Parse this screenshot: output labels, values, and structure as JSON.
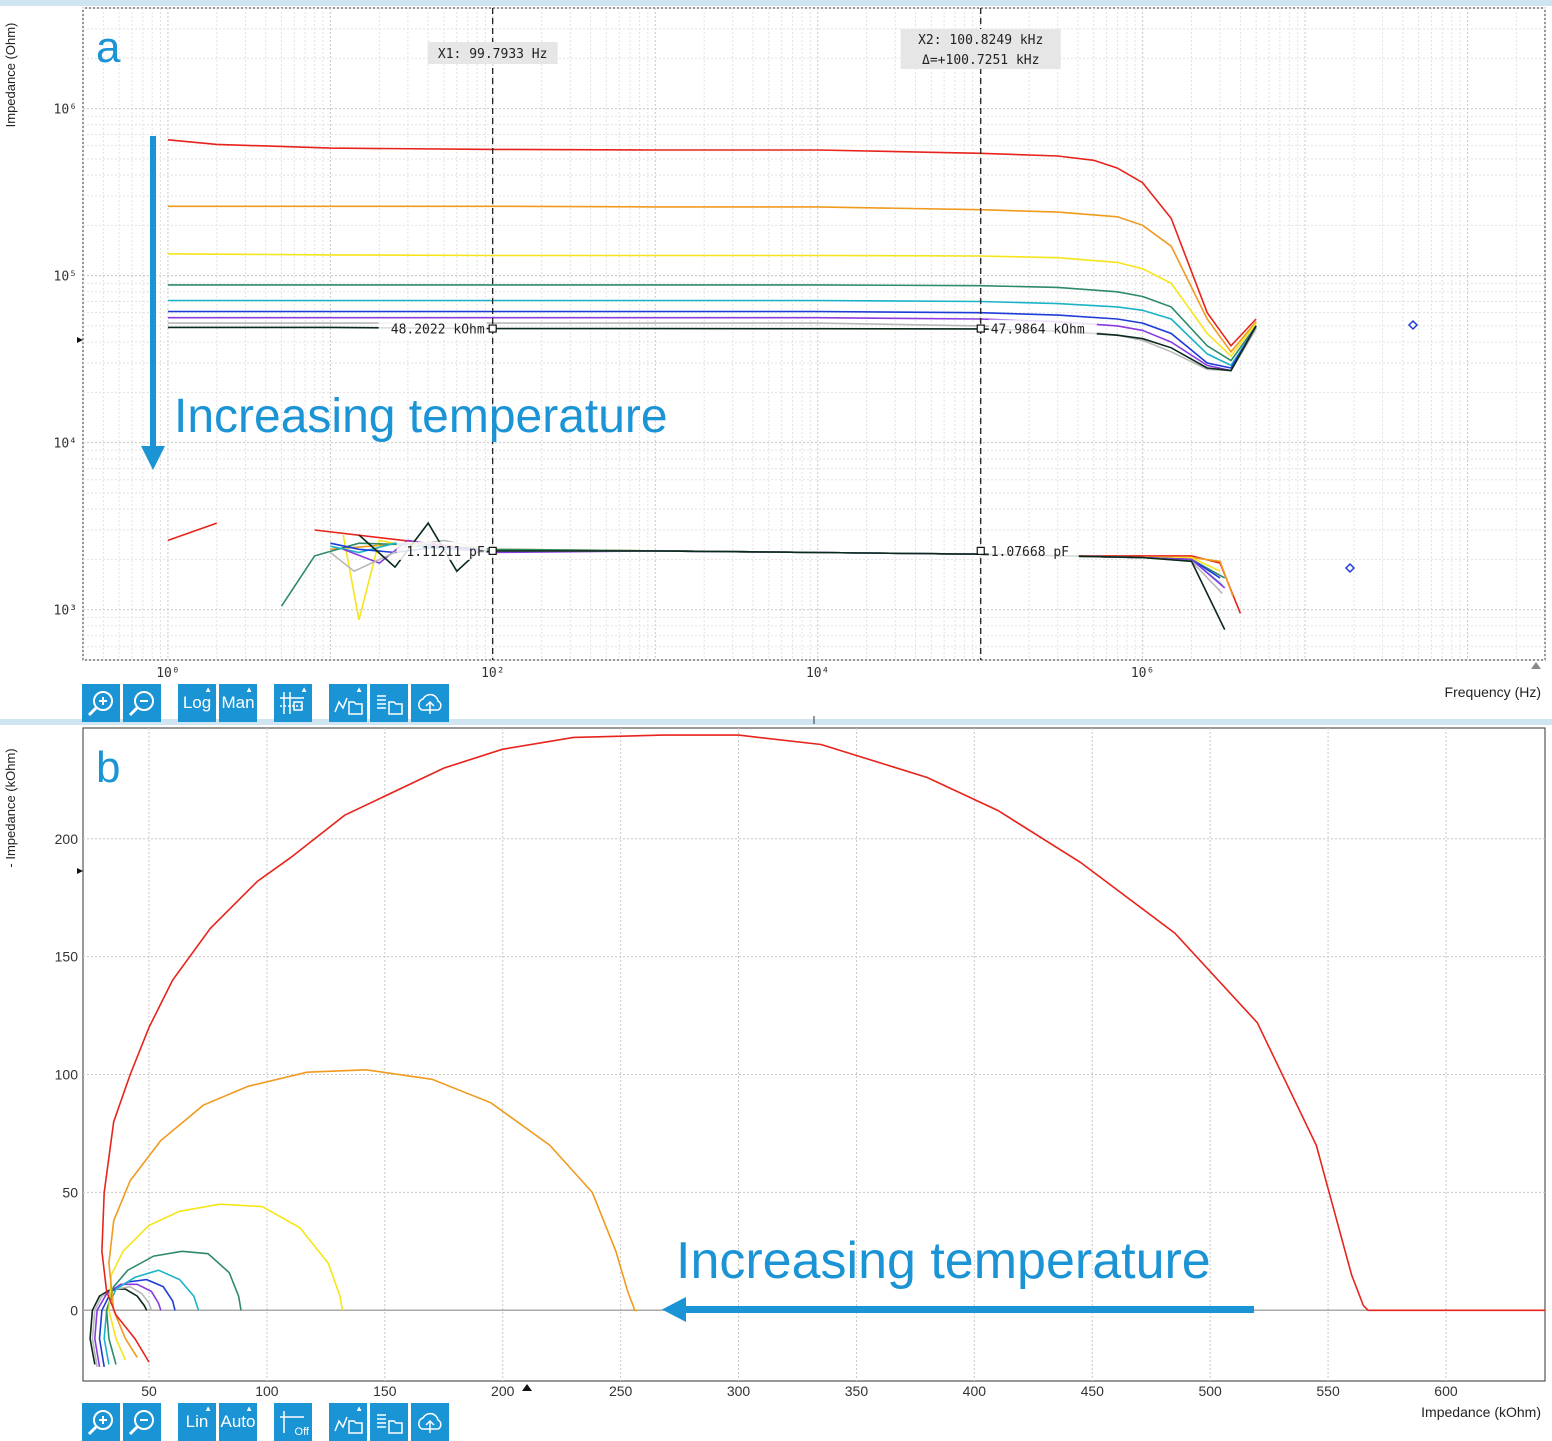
{
  "panel_a": {
    "label": "a",
    "annotation": "Increasing temperature",
    "cursor1_label": "X1: 99.7933 Hz",
    "cursor2_label": [
      "X2: 100.8249 kHz",
      "Δ=+100.7251 kHz"
    ],
    "marker_values": [
      "48.2022 kOhm",
      "47.9864 kOhm",
      "1.11211 pF",
      "1.07668 pF"
    ],
    "toolbar": {
      "zoom_in_icon": "zoom-in-icon",
      "zoom_out_icon": "zoom-out-icon",
      "scale_label": "Log",
      "range_label": "Man",
      "grid_icon": "grid-settings-icon",
      "export_icons": [
        "save-plot-icon",
        "save-data-icon",
        "upload-cloud-icon"
      ]
    }
  },
  "panel_b": {
    "label": "b",
    "annotation": "Increasing temperature",
    "toolbar": {
      "zoom_in_icon": "zoom-in-icon",
      "zoom_out_icon": "zoom-out-icon",
      "scale_label": "Lin",
      "range_label": "Auto",
      "grid_label": "Off",
      "export_icons": [
        "save-plot-icon",
        "save-data-icon",
        "upload-cloud-icon"
      ]
    }
  },
  "colors": {
    "accent": "#1a94d4",
    "series": [
      "#e8231c",
      "#f09a1e",
      "#f5e51a",
      "#2e8b6a",
      "#1ab4c8",
      "#1e3cd8",
      "#8a3ce0",
      "#b8b8b8",
      "#0a2a1a"
    ]
  },
  "chart_data": [
    {
      "type": "line",
      "xlabel": "Frequency (Hz)",
      "ylabel": "Impedance (Ohm)",
      "xscale": "log",
      "yscale": "log",
      "xlim": [
        0.3,
        300000000
      ],
      "ylim": [
        500,
        4000000
      ],
      "xticks": [
        "10⁰",
        "10²",
        "10⁴",
        "10⁶"
      ],
      "yticks": [
        "10³",
        "10⁴",
        "10⁵",
        "10⁶"
      ],
      "grid": true,
      "cursors": [
        99.7933,
        100824.9
      ],
      "impedance_series": [
        {
          "color": "#e8231c",
          "x": [
            1,
            2,
            10,
            100,
            1000,
            10000,
            100000,
            300000,
            500000,
            700000,
            1000000,
            1500000,
            2500000,
            3500000,
            5000000
          ],
          "y": [
            650000,
            610000,
            580000,
            570000,
            565000,
            565000,
            540000,
            520000,
            490000,
            440000,
            360000,
            220000,
            60000,
            38000,
            55000
          ]
        },
        {
          "color": "#f09a1e",
          "x": [
            1,
            10,
            100,
            1000,
            10000,
            100000,
            300000,
            700000,
            1000000,
            1500000,
            2500000,
            3500000,
            5000000
          ],
          "y": [
            260000,
            260000,
            260000,
            258000,
            258000,
            248000,
            240000,
            225000,
            200000,
            150000,
            55000,
            35000,
            53000
          ]
        },
        {
          "color": "#f5e51a",
          "x": [
            1,
            10,
            100,
            1000,
            10000,
            100000,
            300000,
            700000,
            1000000,
            1500000,
            2500000,
            3500000,
            5000000
          ],
          "y": [
            135000,
            133000,
            132000,
            132000,
            132000,
            131000,
            128000,
            120000,
            110000,
            90000,
            45000,
            33000,
            52000
          ]
        },
        {
          "color": "#2e8b6a",
          "x": [
            1,
            10,
            100,
            1000,
            10000,
            100000,
            300000,
            700000,
            1000000,
            1500000,
            2500000,
            3500000,
            5000000
          ],
          "y": [
            88000,
            88000,
            88000,
            88000,
            88000,
            87000,
            85000,
            80000,
            75000,
            65000,
            38000,
            31000,
            50000
          ]
        },
        {
          "color": "#1ab4c8",
          "x": [
            1,
            10,
            100,
            1000,
            10000,
            100000,
            300000,
            700000,
            1000000,
            1500000,
            2500000,
            3500000,
            5000000
          ],
          "y": [
            71000,
            71000,
            71000,
            71000,
            71000,
            70000,
            68000,
            65000,
            62000,
            55000,
            34000,
            29000,
            49000
          ]
        },
        {
          "color": "#1e3cd8",
          "x": [
            1,
            10,
            100,
            1000,
            10000,
            100000,
            300000,
            700000,
            1000000,
            1500000,
            2500000,
            3500000,
            5000000
          ],
          "y": [
            61000,
            61000,
            61000,
            61000,
            61000,
            60000,
            58000,
            55000,
            52000,
            45000,
            30000,
            28000,
            50000
          ]
        },
        {
          "color": "#8a3ce0",
          "x": [
            1,
            10,
            100,
            1000,
            10000,
            100000,
            300000,
            700000,
            1000000,
            1500000,
            2500000,
            3500000,
            5000000
          ],
          "y": [
            56000,
            56000,
            56000,
            56000,
            56000,
            55000,
            53000,
            50000,
            47000,
            40000,
            29000,
            27000,
            50000
          ]
        },
        {
          "color": "#b8b8b8",
          "x": [
            1,
            10,
            100,
            1000,
            10000,
            100000,
            300000,
            700000,
            1000000,
            1500000,
            2500000,
            3500000,
            5000000
          ],
          "y": [
            52000,
            52000,
            52000,
            52000,
            52000,
            50000,
            48000,
            44000,
            41000,
            35000,
            27500,
            27000,
            48000
          ]
        },
        {
          "color": "#0a2a1a",
          "x": [
            1,
            10,
            100,
            1000,
            10000,
            100000,
            300000,
            700000,
            1000000,
            1500000,
            2500000,
            3500000,
            5000000
          ],
          "y": [
            49000,
            49000,
            48200,
            48200,
            48100,
            47986,
            46500,
            44000,
            42000,
            37000,
            28000,
            27000,
            50000
          ]
        }
      ],
      "capacitance_series": [
        {
          "color": "#e8231c",
          "x": [
            1,
            2,
            6,
            8,
            100,
            1000,
            10000,
            100000,
            300000,
            1000000,
            2000000,
            3000000,
            4000000
          ],
          "y": [
            2600,
            3300,
            null,
            3000,
            2250,
            2250,
            2200,
            2150,
            2100,
            2100,
            2100,
            1900,
            950
          ]
        },
        {
          "color": "#f09a1e",
          "x": [
            10,
            30,
            100,
            1000,
            10000,
            100000,
            300000,
            1000000,
            2000000,
            3000000,
            3600000
          ],
          "y": [
            2300,
            2500,
            2300,
            2250,
            2200,
            2150,
            2100,
            2050,
            2050,
            1950,
            1200
          ]
        },
        {
          "color": "#f5e51a",
          "x": [
            12,
            15,
            20,
            30,
            100,
            1000,
            10000,
            100000,
            1000000,
            2000000,
            3000000
          ],
          "y": [
            2800,
            870,
            2600,
            2400,
            2300,
            2250,
            2200,
            2150,
            2050,
            2050,
            1700
          ]
        },
        {
          "color": "#2e8b6a",
          "x": [
            5,
            8,
            15,
            30,
            100,
            1000,
            10000,
            100000,
            1000000,
            2000000,
            3200000
          ],
          "y": [
            1050,
            2100,
            2500,
            2450,
            2300,
            2250,
            2200,
            2150,
            2050,
            2000,
            1550
          ]
        },
        {
          "color": "#1ab4c8",
          "x": [
            10,
            15,
            25,
            50,
            100,
            1000,
            10000,
            100000,
            1000000,
            2000000,
            3100000
          ],
          "y": [
            2400,
            2200,
            2500,
            2300,
            2250,
            2250,
            2200,
            2150,
            2050,
            2000,
            1400
          ]
        },
        {
          "color": "#1e3cd8",
          "x": [
            10,
            15,
            25,
            50,
            100,
            1000,
            10000,
            100000,
            1000000,
            2000000,
            3000000
          ],
          "y": [
            2500,
            2300,
            2200,
            2400,
            2250,
            2250,
            2200,
            2150,
            2050,
            2000,
            1550
          ]
        },
        {
          "color": "#8a3ce0",
          "x": [
            12,
            20,
            30,
            60,
            100,
            1000,
            10000,
            100000,
            1000000,
            2000000,
            3200000
          ],
          "y": [
            2300,
            1900,
            2600,
            2300,
            2200,
            2250,
            2200,
            2150,
            2050,
            2000,
            1350
          ]
        },
        {
          "color": "#b8b8b8",
          "x": [
            10,
            14,
            30,
            50,
            100,
            1000,
            10000,
            100000,
            1000000,
            2000000,
            3100000
          ],
          "y": [
            2200,
            1700,
            2400,
            2600,
            2250,
            2250,
            2200,
            2150,
            2050,
            1950,
            1250
          ]
        },
        {
          "color": "#0a2a1a",
          "x": [
            15,
            25,
            40,
            60,
            80,
            100,
            1000,
            10000,
            100000,
            1000000,
            2000000,
            3200000
          ],
          "y": [
            2800,
            1800,
            3300,
            1700,
            2200,
            2250,
            2250,
            2200,
            2150,
            2050,
            1950,
            760
          ]
        }
      ]
    },
    {
      "type": "line",
      "xlabel": "Impedance (kOhm)",
      "ylabel": "- Impedance (kOhm)",
      "xlim": [
        22,
        642
      ],
      "ylim": [
        -30,
        247
      ],
      "xticks": [
        50,
        100,
        150,
        200,
        250,
        300,
        350,
        400,
        450,
        500,
        550,
        600
      ],
      "yticks": [
        0,
        50,
        100,
        150,
        200
      ],
      "grid": true,
      "zero_line_color": "#aaaaaa",
      "series": [
        {
          "color": "#e8231c",
          "x": [
            50,
            44,
            36,
            32,
            30,
            31,
            35,
            42,
            50,
            60,
            76,
            96,
            110,
            133,
            175,
            200,
            230,
            268,
            300,
            335,
            380,
            410,
            445,
            485,
            520,
            545,
            560,
            565,
            567,
            600,
            642
          ],
          "y": [
            -22,
            -12,
            -2,
            8,
            25,
            50,
            80,
            100,
            120,
            140,
            162,
            182,
            192,
            210,
            230,
            238,
            243,
            244,
            244,
            240,
            226,
            212,
            190,
            160,
            122,
            70,
            15,
            2,
            0,
            0,
            0
          ]
        },
        {
          "color": "#f09a1e",
          "x": [
            45,
            40,
            35,
            33,
            35,
            42,
            55,
            73,
            92,
            117,
            142,
            170,
            195,
            220,
            238,
            248,
            253,
            256,
            257
          ],
          "y": [
            -20,
            -12,
            0,
            20,
            38,
            55,
            72,
            87,
            95,
            101,
            102,
            98,
            88,
            70,
            50,
            25,
            8,
            0,
            0
          ]
        },
        {
          "color": "#f5e51a",
          "x": [
            40,
            36,
            33,
            34,
            39,
            50,
            63,
            80,
            98,
            114,
            126,
            131,
            132
          ],
          "y": [
            -21,
            -12,
            0,
            15,
            25,
            36,
            42,
            45,
            44,
            35,
            20,
            6,
            0
          ]
        },
        {
          "color": "#2e8b6a",
          "x": [
            36,
            33,
            32,
            35,
            41,
            52,
            64,
            75,
            84,
            88,
            89
          ],
          "y": [
            -23,
            -12,
            0,
            10,
            17,
            23,
            25,
            24,
            16,
            6,
            0
          ]
        },
        {
          "color": "#1ab4c8",
          "x": [
            33,
            31,
            32,
            36,
            44,
            54,
            63,
            69,
            71
          ],
          "y": [
            -23,
            -12,
            0,
            9,
            14,
            17,
            13,
            6,
            0
          ]
        },
        {
          "color": "#1e3cd8",
          "x": [
            31,
            29,
            30,
            34,
            41,
            49,
            56,
            60,
            61
          ],
          "y": [
            -24,
            -12,
            0,
            8,
            12,
            13,
            10,
            4,
            0
          ]
        },
        {
          "color": "#8a3ce0",
          "x": [
            29,
            27,
            28,
            32,
            38,
            45,
            51,
            54,
            55
          ],
          "y": [
            -24,
            -12,
            0,
            7,
            11,
            11,
            8,
            3,
            0
          ]
        },
        {
          "color": "#b8b8b8",
          "x": [
            28,
            26,
            27,
            30,
            36,
            42,
            47,
            50,
            51
          ],
          "y": [
            -24,
            -12,
            0,
            6,
            9,
            10,
            7,
            3,
            0
          ]
        },
        {
          "color": "#0a2a1a",
          "x": [
            27,
            25,
            26,
            29,
            34,
            40,
            45,
            48,
            49
          ],
          "y": [
            -23,
            -12,
            0,
            6,
            9,
            9,
            6,
            2,
            0
          ]
        }
      ]
    }
  ]
}
